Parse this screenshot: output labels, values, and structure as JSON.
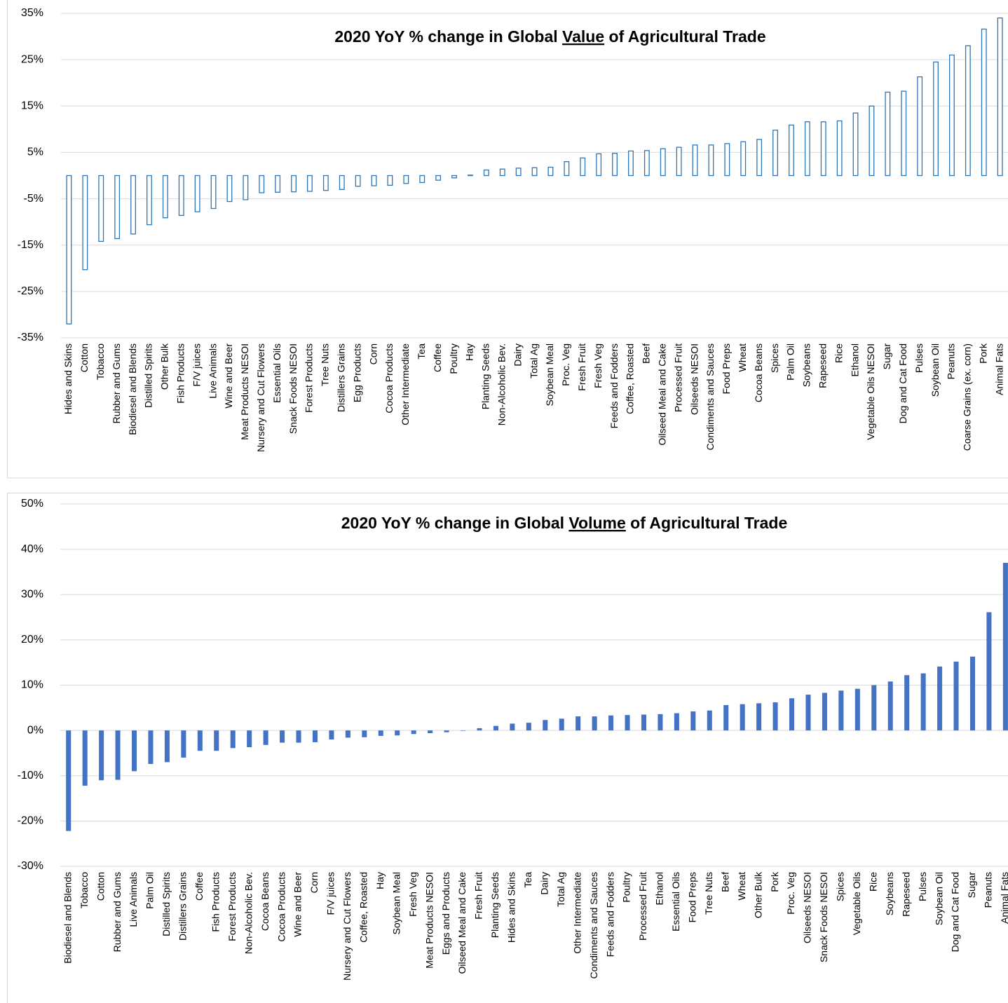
{
  "chart_data": [
    {
      "type": "bar",
      "title": "2020 YoY % change in Global Value of Agricultural Trade",
      "title_underline": "Value",
      "color": "#2e75b6",
      "hollow": true,
      "grid": true,
      "categories": [
        "Hides and Skins",
        "Cotton",
        "Tobacco",
        "Rubber and Gums",
        "Biodiesel and Blends",
        "Distilled Spirits",
        "Other Bulk",
        "Fish Products",
        "F/V juices",
        "Live Animals",
        "Wine and Beer",
        "Meat Products NESOI",
        "Nursery and Cut Flowers",
        "Essential Oils",
        "Snack Foods NESOI",
        "Forest Products",
        "Tree Nuts",
        "Distillers Grains",
        "Egg Products",
        "Corn",
        "Cocoa Products",
        "Other Intermediate",
        "Tea",
        "Coffee",
        "Poultry",
        "Hay",
        "Planting Seeds",
        "Non-Alcoholic Bev.",
        "Dairy",
        "Total Ag",
        "Soybean Meal",
        "Proc. Veg",
        "Fresh Fruit",
        "Fresh Veg",
        "Feeds and Fodders",
        "Coffee, Roasted",
        "Beef",
        "Oilseed Meal and Cake",
        "Processed Fruit",
        "Oilseeds NESOI",
        "Condiments and Sauces",
        "Food Preps",
        "Wheat",
        "Cocoa Beans",
        "Spices",
        "Palm Oil",
        "Soybeans",
        "Rapeseed",
        "Rice",
        "Ethanol",
        "Vegetable Oils NESOI",
        "Sugar",
        "Dog and Cat Food",
        "Pulses",
        "Soybean Oil",
        "Peanuts",
        "Coarse Grains (ex. corn)",
        "Pork",
        "Animal Fats"
      ],
      "values": [
        -32.0,
        -20.3,
        -14.2,
        -13.6,
        -12.6,
        -10.6,
        -9.1,
        -8.6,
        -7.8,
        -7.1,
        -5.6,
        -5.2,
        -3.7,
        -3.6,
        -3.5,
        -3.4,
        -3.2,
        -3.0,
        -2.3,
        -2.2,
        -2.1,
        -1.7,
        -1.5,
        -1.0,
        -0.5,
        0.1,
        1.2,
        1.4,
        1.6,
        1.7,
        1.8,
        3.0,
        3.8,
        4.7,
        4.8,
        5.3,
        5.4,
        5.8,
        6.1,
        6.6,
        6.6,
        6.9,
        7.3,
        7.8,
        9.8,
        10.9,
        11.6,
        11.6,
        11.8,
        13.5,
        15.0,
        18.0,
        18.2,
        21.3,
        24.5,
        26.0,
        28.0,
        31.6,
        34.0
      ],
      "ylim": [
        -35,
        35
      ],
      "yticks": [
        {
          "value": 35,
          "label": "35%"
        },
        {
          "value": 25,
          "label": "25%"
        },
        {
          "value": 15,
          "label": "15%"
        },
        {
          "value": 5,
          "label": "5%"
        },
        {
          "value": -5,
          "label": "-5%"
        },
        {
          "value": -15,
          "label": "-15%"
        },
        {
          "value": -25,
          "label": "-25%"
        },
        {
          "value": -35,
          "label": "-35%"
        }
      ]
    },
    {
      "type": "bar",
      "title": "2020 YoY % change in Global Volume of Agricultural Trade",
      "title_underline": "Volume",
      "color": "#4472c4",
      "hollow": false,
      "grid": true,
      "categories": [
        "Biodiesel and Blends",
        "Tobacco",
        "Cotton",
        "Rubber and Gums",
        "Live Animals",
        "Palm Oil",
        "Distilled Spirits",
        "Distillers Grains",
        "Coffee",
        "Fish Products",
        "Forest Products",
        "Non-Alcoholic Bev.",
        "Cocoa Beans",
        "Cocoa Products",
        "Wine and Beer",
        "Corn",
        "F/V juices",
        "Nursery and Cut Flowers",
        "Coffee, Roasted",
        "Hay",
        "Soybean Meal",
        "Fresh Veg",
        "Meat Products NESOI",
        "Eggs and Products",
        "Oilseed Meal and Cake",
        "Fresh Fruit",
        "Planting Seeds",
        "Hides and Skins",
        "Tea",
        "Dairy",
        "Total Ag",
        "Other Intermediate",
        "Condiments and Sauces",
        "Feeds and Fodders",
        "Poultry",
        "Processed Fruit",
        "Ethanol",
        "Essential Oils",
        "Food Preps",
        "Tree Nuts",
        "Beef",
        "Wheat",
        "Other Bulk",
        "Pork",
        "Proc. Veg",
        "Oilseeds NESOI",
        "Snack Foods NESOI",
        "Spices",
        "Vegetable Oils",
        "Rice",
        "Soybeans",
        "Rapeseed",
        "Pulses",
        "Soybean Oil",
        "Dog and Cat Food",
        "Sugar",
        "Peanuts",
        "Animal Fats"
      ],
      "values": [
        -22.2,
        -12.2,
        -11.0,
        -10.9,
        -9.0,
        -7.4,
        -7.0,
        -6.0,
        -4.5,
        -4.5,
        -3.9,
        -3.7,
        -3.2,
        -2.7,
        -2.7,
        -2.6,
        -2.0,
        -1.6,
        -1.5,
        -1.2,
        -1.1,
        -0.8,
        -0.6,
        -0.4,
        -0.1,
        0.5,
        1.0,
        1.5,
        1.7,
        2.3,
        2.6,
        3.1,
        3.1,
        3.3,
        3.4,
        3.5,
        3.6,
        3.8,
        4.2,
        4.4,
        5.6,
        5.8,
        6.0,
        6.2,
        7.1,
        7.9,
        8.3,
        8.8,
        9.2,
        10.0,
        10.8,
        12.2,
        12.6,
        14.1,
        15.2,
        16.3,
        26.1,
        37.0
      ],
      "ylim": [
        -30,
        50
      ],
      "yticks": [
        {
          "value": 50,
          "label": "50%"
        },
        {
          "value": 40,
          "label": "40%"
        },
        {
          "value": 30,
          "label": "30%"
        },
        {
          "value": 20,
          "label": "20%"
        },
        {
          "value": 10,
          "label": "10%"
        },
        {
          "value": 0,
          "label": "0%"
        },
        {
          "value": -10,
          "label": "-10%"
        },
        {
          "value": -20,
          "label": "-20%"
        },
        {
          "value": -30,
          "label": "-30%"
        }
      ]
    }
  ]
}
